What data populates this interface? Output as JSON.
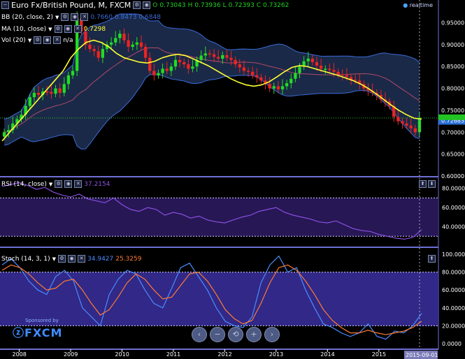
{
  "header": {
    "instrument": "Euro Fx/British Pound, M, FXCM",
    "open_label": "O",
    "open": "0.73043",
    "high_label": "H",
    "high": "0.73936",
    "low_label": "L",
    "low": "0.72393",
    "close_label": "C",
    "close": "0.73262",
    "realtime": "realtime"
  },
  "indicators": {
    "bb": {
      "label": "BB (20, close, 2)",
      "v1": "0.7660",
      "v2": "0.8473",
      "v3": "0.6848"
    },
    "ma": {
      "label": "MA (10, close)",
      "value": "0.7298"
    },
    "vol": {
      "label": "Vol (20)",
      "value": "n/a"
    },
    "rsi": {
      "label": "RSI (14, close)",
      "value": "37.2154"
    },
    "stoch": {
      "label": "Stoch (14, 3, 1)",
      "k": "34.9427",
      "d": "25.3259"
    }
  },
  "price_axis": {
    "ticks": [
      "0.95000",
      "0.90000",
      "0.85000",
      "0.80000",
      "0.75000",
      "0.70000",
      "0.65000",
      "0.60000"
    ],
    "current": "0.72683"
  },
  "rsi_axis": {
    "ticks": [
      "80.0000",
      "60.0000",
      "40.0000"
    ]
  },
  "stoch_axis": {
    "ticks": [
      "100.0000",
      "80.0000",
      "60.0000",
      "40.0000",
      "20.0000",
      "0.0000"
    ]
  },
  "time_axis": {
    "labels": [
      "2008",
      "2009",
      "2010",
      "2011",
      "2012",
      "2013",
      "2014",
      "2015"
    ],
    "current": "2015-09-01"
  },
  "sponsor": {
    "line1": "Sponsored by",
    "brand": "FXCM"
  },
  "nav": {
    "prev": "‹",
    "zoom_out": "−",
    "reset": "⟲",
    "zoom_in": "+",
    "next": "›"
  },
  "colors": {
    "up": "#22dd22",
    "down": "#ee2222",
    "ma": "#ffff33",
    "bb": "#3b6bd9",
    "rsi": "#8a4ee0",
    "stoch_k": "#4a8cff",
    "stoch_d": "#ff7b2e",
    "axis_text": "#ffffff"
  },
  "chart_data": [
    {
      "type": "candlestick",
      "title": "Euro Fx/British Pound, M, FXCM",
      "x_start": "2007-09",
      "interval": "month",
      "ylim": [
        0.6,
        0.97
      ],
      "closes": [
        0.7,
        0.705,
        0.72,
        0.73,
        0.74,
        0.76,
        0.78,
        0.79,
        0.785,
        0.793,
        0.792,
        0.788,
        0.8,
        0.79,
        0.81,
        0.83,
        0.84,
        0.96,
        0.93,
        0.9,
        0.89,
        0.885,
        0.87,
        0.89,
        0.9,
        0.905,
        0.915,
        0.925,
        0.91,
        0.895,
        0.9,
        0.905,
        0.895,
        0.87,
        0.84,
        0.83,
        0.835,
        0.845,
        0.84,
        0.85,
        0.865,
        0.86,
        0.855,
        0.845,
        0.85,
        0.865,
        0.875,
        0.88,
        0.878,
        0.872,
        0.868,
        0.876,
        0.87,
        0.865,
        0.855,
        0.848,
        0.84,
        0.838,
        0.83,
        0.825,
        0.818,
        0.81,
        0.8,
        0.805,
        0.798,
        0.805,
        0.812,
        0.822,
        0.835,
        0.85,
        0.862,
        0.868,
        0.86,
        0.852,
        0.845,
        0.845,
        0.842,
        0.838,
        0.832,
        0.83,
        0.826,
        0.82,
        0.818,
        0.81,
        0.8,
        0.795,
        0.79,
        0.785,
        0.775,
        0.77,
        0.76,
        0.735,
        0.725,
        0.72,
        0.715,
        0.709,
        0.7,
        0.733
      ],
      "ma_y": [
        0.68,
        0.7,
        0.72,
        0.74,
        0.76,
        0.78,
        0.8,
        0.82,
        0.84,
        0.87,
        0.89,
        0.905,
        0.91,
        0.905,
        0.895,
        0.88,
        0.87,
        0.865,
        0.86,
        0.858,
        0.862,
        0.87,
        0.875,
        0.878,
        0.875,
        0.868,
        0.86,
        0.852,
        0.842,
        0.832,
        0.822,
        0.814,
        0.808,
        0.805,
        0.808,
        0.815,
        0.826,
        0.838,
        0.848,
        0.852,
        0.85,
        0.845,
        0.84,
        0.835,
        0.83,
        0.824,
        0.818,
        0.81,
        0.8,
        0.788,
        0.775,
        0.762,
        0.75,
        0.74,
        0.732,
        0.73
      ]
    },
    {
      "type": "line",
      "title": "RSI (14, close)",
      "ylim": [
        20,
        90
      ],
      "bands": [
        30,
        70
      ],
      "values": [
        82,
        84,
        86,
        83,
        79,
        81,
        76,
        73,
        71,
        74,
        69,
        67,
        65,
        70,
        63,
        58,
        56,
        60,
        58,
        52,
        55,
        53,
        49,
        51,
        47,
        45,
        44,
        47,
        50,
        52,
        56,
        58,
        60,
        55,
        52,
        50,
        48,
        45,
        44,
        46,
        42,
        38,
        36,
        35,
        32,
        30,
        28,
        27,
        29,
        37
      ]
    },
    {
      "type": "line",
      "title": "Stoch (14, 3, 1)",
      "ylim": [
        0,
        100
      ],
      "bands": [
        20,
        80
      ],
      "series": [
        {
          "name": "%K",
          "values": [
            88,
            95,
            85,
            70,
            60,
            55,
            75,
            82,
            70,
            40,
            30,
            20,
            55,
            72,
            82,
            78,
            60,
            45,
            40,
            62,
            85,
            90,
            75,
            60,
            40,
            25,
            20,
            18,
            30,
            68,
            88,
            98,
            80,
            85,
            60,
            40,
            22,
            18,
            12,
            8,
            12,
            22,
            8,
            5,
            14,
            12,
            20,
            34
          ]
        },
        {
          "name": "%D",
          "values": [
            82,
            88,
            85,
            78,
            68,
            60,
            62,
            70,
            72,
            60,
            45,
            32,
            38,
            52,
            68,
            78,
            72,
            60,
            50,
            52,
            65,
            78,
            80,
            70,
            55,
            38,
            28,
            22,
            26,
            45,
            68,
            85,
            88,
            82,
            70,
            55,
            38,
            26,
            18,
            12,
            12,
            15,
            12,
            10,
            12,
            14,
            18,
            25
          ]
        }
      ]
    }
  ]
}
